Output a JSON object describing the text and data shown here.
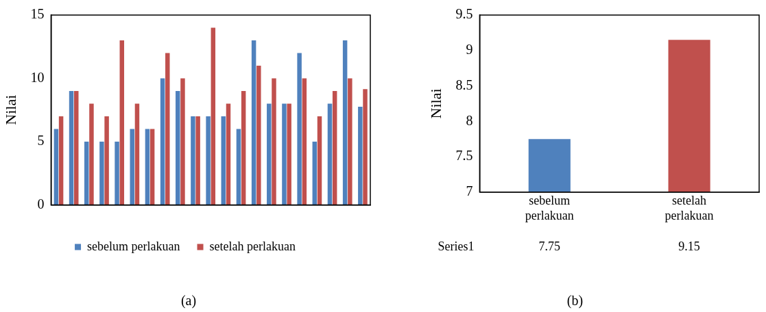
{
  "chart_data": [
    {
      "type": "bar",
      "ylabel": "Nilai",
      "categories": [
        null,
        null,
        null,
        null,
        null,
        null,
        null,
        null,
        null,
        null,
        null,
        null,
        null,
        null,
        null,
        null,
        null,
        null,
        null,
        null,
        null
      ],
      "ylim": [
        0,
        15
      ],
      "yticks": [
        0,
        5,
        10,
        15
      ],
      "grid": false,
      "legend": "bottom",
      "annotations": [
        "(a)"
      ],
      "series": [
        {
          "name": "sebelum perlakuan",
          "color": "#4f81bd",
          "values": [
            6,
            9,
            5,
            5,
            5,
            6,
            6,
            10,
            9,
            7,
            7,
            7,
            6,
            13,
            8,
            8,
            12,
            5,
            8,
            13,
            7.75
          ]
        },
        {
          "name": "setelah perlakuan",
          "color": "#c0504d",
          "values": [
            7,
            9,
            8,
            7,
            13,
            8,
            6,
            12,
            10,
            7,
            14,
            8,
            9,
            11,
            10,
            8,
            10,
            7,
            9,
            10,
            9.15
          ]
        }
      ]
    },
    {
      "type": "bar",
      "ylabel": "Nilai",
      "categories": [
        "sebelum perlakuan",
        "setelah perlakuan"
      ],
      "ylim": [
        7,
        9.5
      ],
      "yticks": [
        7,
        7.5,
        8,
        8.5,
        9,
        9.5
      ],
      "grid": false,
      "legend": false,
      "data_labels": true,
      "annotations": [
        "(b)"
      ],
      "series": [
        {
          "name": "Series1",
          "colors": [
            "#4f81bd",
            "#c0504d"
          ],
          "values": [
            7.75,
            9.15
          ]
        }
      ]
    }
  ]
}
